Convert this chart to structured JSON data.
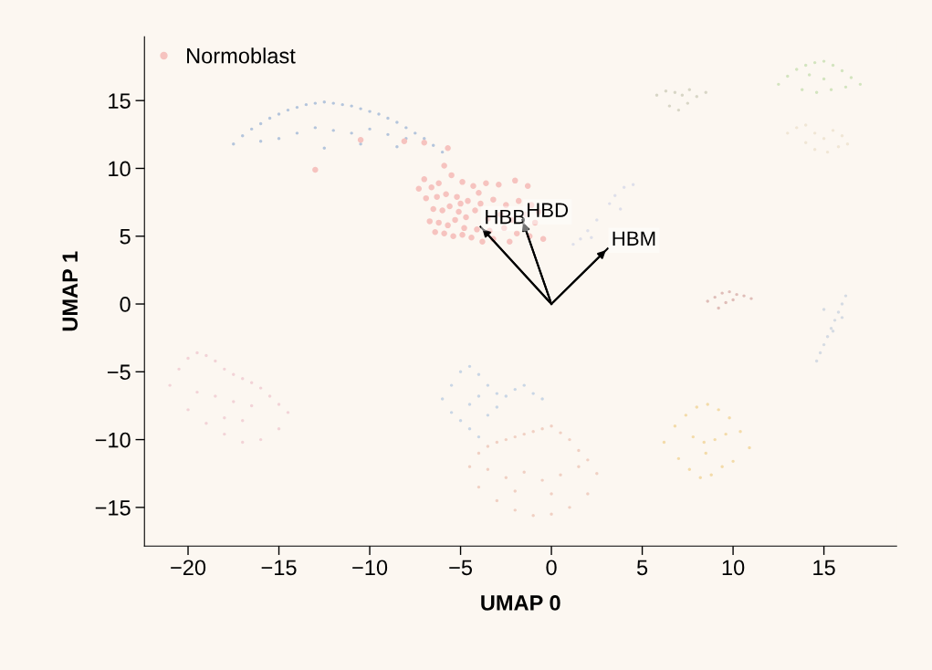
{
  "chart_data": {
    "type": "scatter",
    "xlabel": "UMAP 0",
    "ylabel": "UMAP 1",
    "xlim": [
      -22.4,
      19.0
    ],
    "ylim": [
      -17.85,
      19.7
    ],
    "xticks": [
      {
        "value": -20,
        "label": "−20"
      },
      {
        "value": -15,
        "label": "−15"
      },
      {
        "value": -10,
        "label": "−10"
      },
      {
        "value": -5,
        "label": "−5"
      },
      0,
      5,
      10,
      15
    ],
    "yticks": [
      {
        "value": -15,
        "label": "−15"
      },
      {
        "value": -10,
        "label": "−10"
      },
      {
        "value": -5,
        "label": "−5"
      },
      0,
      5,
      10,
      15
    ],
    "grid": false,
    "legend": "top left",
    "marker": "circle",
    "annotations": [
      {
        "text": "HBB",
        "x": -3.9,
        "y": 5.7
      },
      {
        "text": "HBD",
        "x": -1.6,
        "y": 6.2
      },
      {
        "text": "HBM",
        "x": 3.1,
        "y": 4.1
      }
    ],
    "series": [
      {
        "color": "#b4c5dc",
        "x": [
          -17.5,
          -17.0,
          -16.5,
          -16.0,
          -15.5,
          -15.0,
          -14.5,
          -14.0,
          -13.5,
          -13.0,
          -12.5,
          -12.0,
          -11.5,
          -11.0,
          -10.5,
          -10.0,
          -9.5,
          -9.0,
          -8.5,
          -8.0,
          -7.5,
          -7.0,
          -6.5,
          -6.0,
          -15.0,
          -14.0,
          -13.0,
          -12.0,
          -11.0,
          -10.0,
          -9.0,
          -8.0,
          -16.0,
          -12.5,
          -10.5,
          -8.5
        ],
        "values": [
          11.8,
          12.4,
          12.9,
          13.3,
          13.7,
          14.0,
          14.3,
          14.5,
          14.7,
          14.8,
          14.9,
          14.8,
          14.7,
          14.6,
          14.4,
          14.2,
          14.0,
          13.7,
          13.4,
          13.0,
          12.6,
          12.2,
          11.7,
          11.2,
          12.2,
          12.6,
          13.0,
          12.8,
          12.6,
          12.9,
          12.5,
          12.2,
          12.0,
          11.5,
          11.8,
          11.6
        ]
      },
      {
        "color": "#f2d3d7",
        "x": [
          -21.0,
          -20.5,
          -20.0,
          -19.5,
          -19.0,
          -18.5,
          -18.0,
          -17.5,
          -17.0,
          -16.5,
          -16.0,
          -15.5,
          -15.0,
          -14.5,
          -20.0,
          -19.0,
          -18.0,
          -17.0,
          -16.0,
          -15.0,
          -19.5,
          -18.5,
          -17.5,
          -16.5,
          -18.0,
          -17.0
        ],
        "values": [
          -6.0,
          -4.8,
          -4.0,
          -3.6,
          -3.8,
          -4.2,
          -4.8,
          -5.2,
          -5.5,
          -5.8,
          -6.2,
          -6.8,
          -7.4,
          -8.0,
          -7.8,
          -8.8,
          -9.6,
          -10.2,
          -10.0,
          -9.2,
          -6.5,
          -6.8,
          -7.2,
          -7.5,
          -8.4,
          -8.6
        ]
      },
      {
        "color": "#c9d6e5",
        "x": [
          -6.0,
          -5.5,
          -5.0,
          -4.5,
          -4.0,
          -3.5,
          -3.0,
          -2.5,
          -2.0,
          -1.5,
          -1.0,
          -0.5,
          -5.5,
          -5.0,
          -4.5,
          -4.0,
          -3.5,
          -3.0,
          -4.5,
          -4.0
        ],
        "values": [
          -7.0,
          -6.0,
          -5.0,
          -4.6,
          -5.2,
          -6.0,
          -6.6,
          -6.8,
          -6.3,
          -6.0,
          -6.6,
          -7.0,
          -8.0,
          -8.6,
          -9.2,
          -9.8,
          -8.2,
          -7.6,
          -7.4,
          -6.8
        ]
      },
      {
        "color": "#f0d0c3",
        "x": [
          -4.5,
          -4.0,
          -3.5,
          -3.0,
          -2.5,
          -2.0,
          -1.5,
          -1.0,
          -0.5,
          0.0,
          0.5,
          1.0,
          1.5,
          2.0,
          2.5,
          -4.0,
          -3.0,
          -2.0,
          -1.0,
          0.0,
          1.0,
          2.0,
          -3.5,
          -2.5,
          -1.5,
          -0.5,
          0.5,
          1.5,
          -2.0,
          0.0
        ],
        "values": [
          -12.0,
          -11.0,
          -10.5,
          -10.2,
          -10.0,
          -9.8,
          -9.6,
          -9.4,
          -9.2,
          -9.0,
          -9.5,
          -10.0,
          -10.8,
          -11.5,
          -12.5,
          -13.5,
          -14.5,
          -15.2,
          -15.6,
          -15.5,
          -15.0,
          -14.0,
          -12.2,
          -12.8,
          -12.4,
          -13.0,
          -12.6,
          -12.0,
          -13.8,
          -14.0
        ]
      },
      {
        "color": "#f3dba9",
        "x": [
          6.2,
          6.8,
          7.4,
          8.0,
          8.6,
          9.2,
          9.8,
          10.4,
          10.9,
          7.0,
          7.6,
          8.2,
          8.8,
          9.4,
          10.0,
          7.8,
          8.4,
          9.0,
          9.6,
          8.5
        ],
        "values": [
          -10.2,
          -9.0,
          -8.2,
          -7.6,
          -7.4,
          -7.8,
          -8.4,
          -9.4,
          -10.6,
          -11.4,
          -12.2,
          -12.8,
          -12.6,
          -12.0,
          -11.6,
          -9.8,
          -10.2,
          -10.0,
          -9.6,
          -11.0
        ]
      },
      {
        "color": "#d3e4bf",
        "x": [
          12.5,
          13.0,
          13.5,
          14.0,
          14.5,
          15.0,
          15.5,
          16.0,
          16.5,
          17.0,
          13.8,
          14.6,
          15.4,
          16.2,
          15.0,
          14.2
        ],
        "values": [
          16.2,
          16.8,
          17.3,
          17.6,
          17.8,
          17.9,
          17.6,
          17.2,
          16.7,
          16.2,
          15.8,
          15.6,
          15.8,
          16.0,
          16.6,
          16.9
        ]
      },
      {
        "color": "#d8d6c6",
        "x": [
          5.8,
          6.3,
          6.8,
          7.2,
          7.6,
          8.0,
          8.5,
          6.5,
          7.0,
          7.5
        ],
        "values": [
          15.4,
          15.7,
          15.6,
          15.4,
          15.8,
          15.3,
          15.6,
          14.6,
          14.3,
          14.8
        ]
      },
      {
        "color": "#f0e6d5",
        "x": [
          13.0,
          13.5,
          14.0,
          14.5,
          15.0,
          15.5,
          16.0,
          16.3,
          14.5,
          15.2,
          15.8,
          14.0
        ],
        "values": [
          12.6,
          13.0,
          13.2,
          12.6,
          12.2,
          12.8,
          12.4,
          11.8,
          11.4,
          11.2,
          11.6,
          11.9
        ]
      },
      {
        "color": "#dfbdb8",
        "x": [
          8.6,
          9.0,
          9.4,
          9.8,
          10.2,
          10.6,
          11.0,
          9.6,
          10.0,
          9.2
        ],
        "values": [
          0.2,
          0.5,
          0.8,
          0.9,
          0.7,
          0.6,
          0.4,
          0.1,
          0.3,
          -0.3
        ]
      },
      {
        "color": "#d5dbe3",
        "x": [
          16.2,
          16.0,
          15.8,
          15.6,
          15.4,
          15.2,
          15.0,
          14.8,
          14.6,
          16.0,
          15.5,
          15.0
        ],
        "values": [
          0.6,
          0.0,
          -0.6,
          -1.2,
          -1.8,
          -2.4,
          -3.0,
          -3.6,
          -4.2,
          -1.0,
          -2.0,
          -0.4
        ]
      },
      {
        "color": "#dedfea",
        "x": [
          3.5,
          4.0,
          4.5,
          3.2,
          3.8,
          2.5,
          2.0,
          1.6,
          1.2,
          2.2
        ],
        "values": [
          8.0,
          8.6,
          8.8,
          7.4,
          7.0,
          6.2,
          5.4,
          4.8,
          4.4,
          4.9
        ]
      },
      {
        "type": "line",
        "marker": "none",
        "color": "#000000",
        "x": [
          0,
          -3.9
        ],
        "values": [
          0,
          5.7
        ]
      },
      {
        "type": "line",
        "marker": "none",
        "color": "#000000",
        "x": [
          0,
          -1.6
        ],
        "values": [
          0,
          6.2
        ]
      },
      {
        "type": "line",
        "marker": "none",
        "color": "#000000",
        "x": [
          0,
          3.1
        ],
        "values": [
          0,
          4.1
        ]
      },
      {
        "name": "Normoblast",
        "color": "#f6c3bf",
        "x": [
          -10.5,
          -8.1,
          -7.0,
          -5.7,
          -13.0,
          -0.45,
          -5.9,
          -5.5,
          -6.2,
          -6.6,
          -4.9,
          -4.3,
          -3.6,
          -2.9,
          -2.0,
          -1.3,
          -6.9,
          -6.3,
          -5.8,
          -5.2,
          -4.6,
          -3.9,
          -3.2,
          -2.5,
          -1.8,
          -1.1,
          -6.5,
          -6.0,
          -5.6,
          -5.1,
          -4.7,
          -4.2,
          -3.5,
          -2.8,
          -2.2,
          -1.4,
          -0.7,
          -6.7,
          -6.2,
          -5.7,
          -5.3,
          -4.8,
          -4.1,
          -3.4,
          -2.6,
          -1.9,
          -6.4,
          -5.9,
          -5.4,
          -4.9,
          -4.4,
          -3.8,
          -3.2,
          -2.3,
          -1.2,
          -0.9,
          -7.3,
          -7.0,
          -5.0,
          -4.0
        ],
        "values": [
          12.1,
          12.0,
          11.9,
          11.5,
          9.9,
          4.8,
          10.2,
          9.5,
          8.9,
          8.6,
          9.0,
          8.7,
          8.9,
          8.8,
          9.1,
          8.7,
          7.8,
          7.9,
          8.1,
          7.9,
          7.6,
          7.4,
          7.7,
          7.3,
          7.6,
          7.3,
          7.0,
          6.9,
          7.2,
          6.8,
          6.4,
          6.9,
          6.3,
          6.6,
          6.2,
          6.6,
          6.8,
          6.1,
          6.0,
          5.8,
          6.2,
          5.6,
          5.5,
          5.4,
          5.6,
          5.2,
          5.3,
          5.2,
          5.0,
          5.1,
          4.9,
          4.6,
          4.8,
          4.6,
          5.0,
          6.0,
          8.5,
          9.2,
          7.4,
          8.2
        ]
      }
    ]
  }
}
